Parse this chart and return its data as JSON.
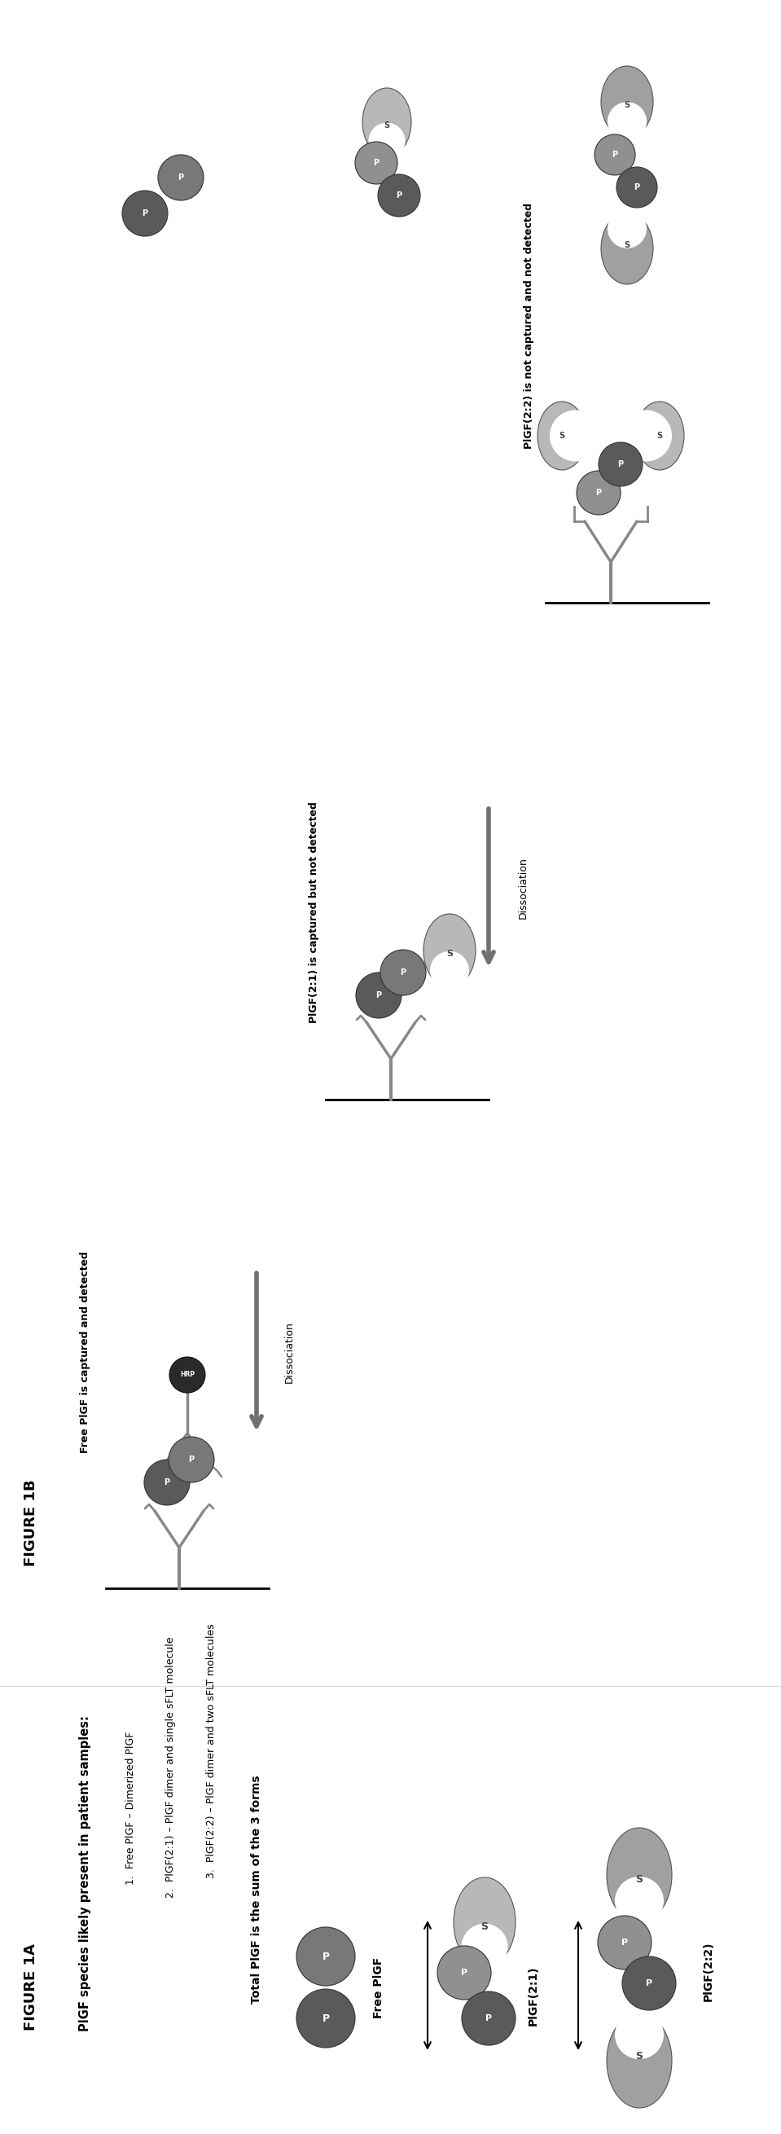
{
  "fig_width": 9.59,
  "fig_height": 26.2,
  "background": "#ffffff",
  "figA_label": "FIGURE 1A",
  "figB_label": "FIGURE 1B",
  "species_title": "PlGF species likely present in patient samples:",
  "species_list": [
    "Free PlGF – Dimerized PlGF",
    "PlGF(2:1) – PlGF dimer and single sFLT molecule",
    "PlGF(2:2) – PlGF dimer and two sFLT molecules"
  ],
  "total_label": "Total PlGF is the sum of the 3 forms",
  "free_pigf_label": "Free PlGF",
  "pigf21_label": "PlGF(2:1)",
  "pigf22_label": "PlGF(2:2)",
  "free_captured": "Free PlGF is captured and detected",
  "pigf21_captured": "PlGF(2:1) is captured but not detected",
  "pigf22_not_captured": "PlGF(2:2) is not captured and not detected",
  "dissociation_label": "Dissociation",
  "p_dark": "#5a5a5a",
  "p_medium": "#787878",
  "p_light": "#909090",
  "s_color": "#b8b8b8",
  "s_dark": "#a0a0a0",
  "ab_color": "#909090",
  "dissoc_color": "#707070"
}
